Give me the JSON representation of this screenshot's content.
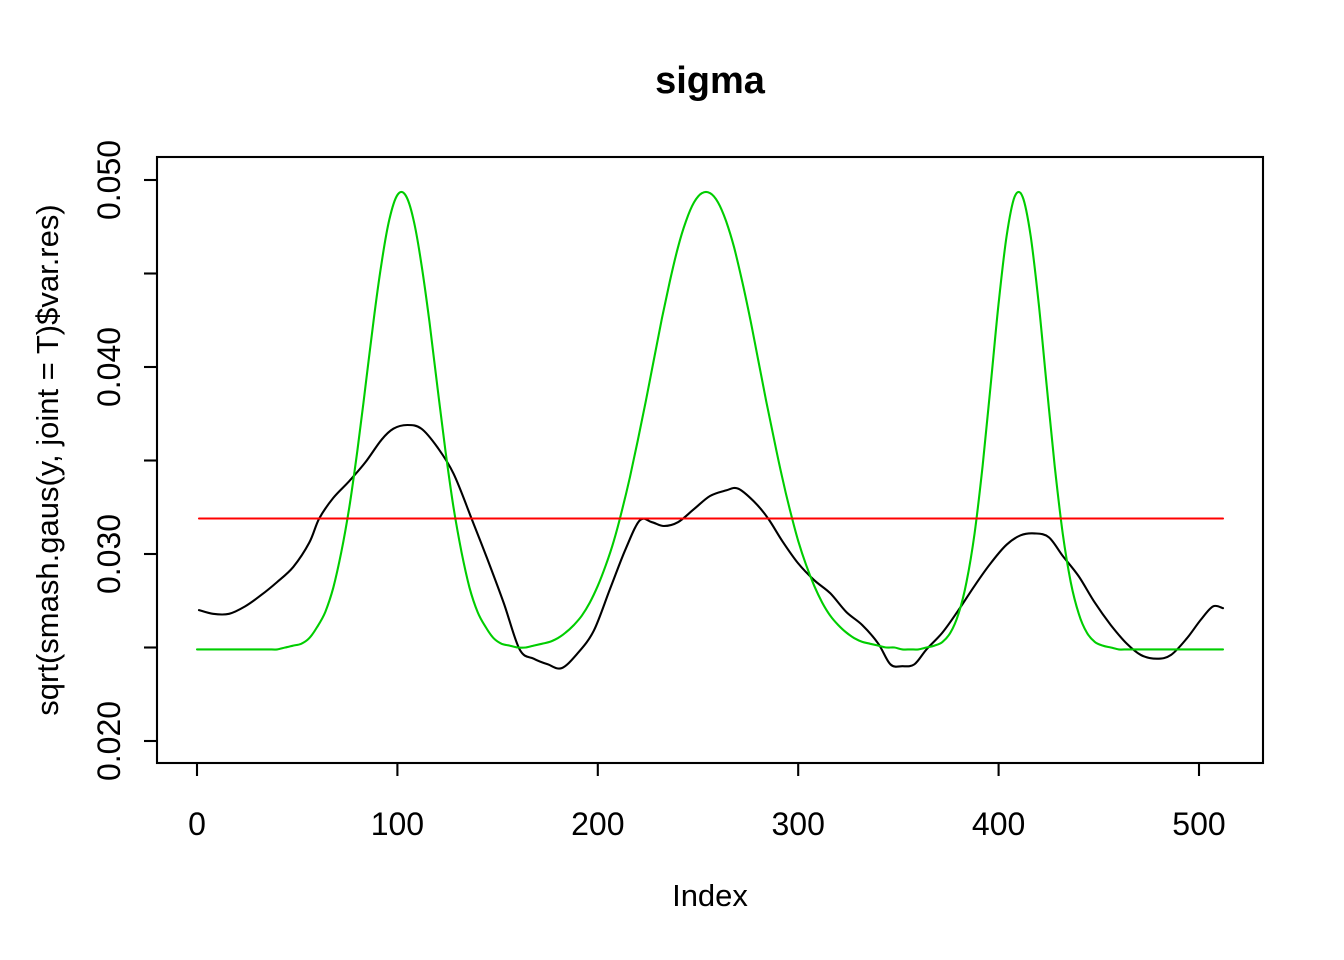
{
  "figure": {
    "background": "#ffffff",
    "title": "sigma"
  },
  "chart_data": {
    "type": "line",
    "title": "sigma",
    "xlabel": "Index",
    "ylabel": "sqrt(smash.gaus(y, joint = T)$var.res)",
    "xlim": [
      1,
      512
    ],
    "ylim": [
      0.02,
      0.05
    ],
    "grid": false,
    "legend": "none",
    "x_ticks": [
      {
        "value": 0,
        "label": "0"
      },
      {
        "value": 100,
        "label": "100"
      },
      {
        "value": 200,
        "label": "200"
      },
      {
        "value": 300,
        "label": "300"
      },
      {
        "value": 400,
        "label": "400"
      },
      {
        "value": 500,
        "label": "500"
      }
    ],
    "y_ticks": [
      {
        "value": 0.02,
        "label": "0.020"
      },
      {
        "value": 0.03,
        "label": "0.030"
      },
      {
        "value": 0.04,
        "label": "0.040"
      },
      {
        "value": 0.05,
        "label": "0.050"
      }
    ],
    "y_minor_ticks": [
      0.025,
      0.035,
      0.045
    ],
    "colors": {
      "black_series": "#000000",
      "green_series": "#00CD00",
      "red_series": "#FF0000",
      "axis": "#000000"
    },
    "series": [
      {
        "id": "black",
        "color": "#000000",
        "style": "smooth",
        "points": [
          [
            1,
            0.027
          ],
          [
            8,
            0.0268
          ],
          [
            16,
            0.0268
          ],
          [
            24,
            0.0272
          ],
          [
            32,
            0.0278
          ],
          [
            40,
            0.0285
          ],
          [
            48,
            0.0293
          ],
          [
            56,
            0.0306
          ],
          [
            61,
            0.0319
          ],
          [
            68,
            0.033
          ],
          [
            76,
            0.0339
          ],
          [
            84,
            0.0349
          ],
          [
            92,
            0.0361
          ],
          [
            98,
            0.0367
          ],
          [
            105,
            0.0369
          ],
          [
            112,
            0.0367
          ],
          [
            120,
            0.0357
          ],
          [
            128,
            0.0343
          ],
          [
            137,
            0.0319
          ],
          [
            145,
            0.0297
          ],
          [
            153,
            0.0274
          ],
          [
            161,
            0.0249
          ],
          [
            168,
            0.0244
          ],
          [
            175,
            0.0241
          ],
          [
            182,
            0.0239
          ],
          [
            190,
            0.0247
          ],
          [
            198,
            0.0259
          ],
          [
            206,
            0.0281
          ],
          [
            214,
            0.0303
          ],
          [
            221,
            0.0318
          ],
          [
            227,
            0.0317
          ],
          [
            233,
            0.0315
          ],
          [
            240,
            0.0317
          ],
          [
            248,
            0.0324
          ],
          [
            256,
            0.0331
          ],
          [
            264,
            0.0334
          ],
          [
            270,
            0.0335
          ],
          [
            278,
            0.0328
          ],
          [
            285,
            0.0319
          ],
          [
            292,
            0.0307
          ],
          [
            300,
            0.0295
          ],
          [
            308,
            0.0286
          ],
          [
            316,
            0.0279
          ],
          [
            324,
            0.0269
          ],
          [
            332,
            0.0262
          ],
          [
            340,
            0.0252
          ],
          [
            346,
            0.0241
          ],
          [
            352,
            0.024
          ],
          [
            358,
            0.0241
          ],
          [
            364,
            0.0249
          ],
          [
            372,
            0.0258
          ],
          [
            380,
            0.027
          ],
          [
            388,
            0.0283
          ],
          [
            396,
            0.0295
          ],
          [
            404,
            0.0305
          ],
          [
            411,
            0.031
          ],
          [
            418,
            0.0311
          ],
          [
            425,
            0.0309
          ],
          [
            432,
            0.0299
          ],
          [
            440,
            0.0288
          ],
          [
            448,
            0.0274
          ],
          [
            456,
            0.0262
          ],
          [
            464,
            0.0252
          ],
          [
            471,
            0.0246
          ],
          [
            479,
            0.0244
          ],
          [
            486,
            0.0246
          ],
          [
            494,
            0.0255
          ],
          [
            501,
            0.0265
          ],
          [
            507,
            0.0272
          ],
          [
            512,
            0.0271
          ]
        ]
      },
      {
        "id": "green",
        "color": "#00CD00",
        "style": "smooth",
        "x_start": 0,
        "x_step": 4,
        "values": [
          0.0249,
          0.0249,
          0.0249,
          0.0249,
          0.0249,
          0.0249,
          0.0249,
          0.0249,
          0.0249,
          0.0249,
          0.0249,
          0.025,
          0.0251,
          0.0252,
          0.0255,
          0.0261,
          0.0269,
          0.0282,
          0.0301,
          0.0325,
          0.0355,
          0.0389,
          0.0424,
          0.0455,
          0.0479,
          0.0492,
          0.0492,
          0.0479,
          0.0455,
          0.0424,
          0.0389,
          0.0355,
          0.0325,
          0.0301,
          0.0282,
          0.0269,
          0.0261,
          0.0255,
          0.0252,
          0.0251,
          0.025,
          0.025,
          0.0251,
          0.0252,
          0.0253,
          0.0255,
          0.0258,
          0.0262,
          0.0267,
          0.0274,
          0.0283,
          0.0294,
          0.0307,
          0.0323,
          0.0341,
          0.0361,
          0.0382,
          0.0404,
          0.0426,
          0.0446,
          0.0464,
          0.0478,
          0.0488,
          0.0493,
          0.0493,
          0.0488,
          0.0478,
          0.0464,
          0.0446,
          0.0426,
          0.0404,
          0.0382,
          0.0361,
          0.0341,
          0.0323,
          0.0307,
          0.0294,
          0.0283,
          0.0274,
          0.0267,
          0.0262,
          0.0258,
          0.0255,
          0.0253,
          0.0252,
          0.0251,
          0.025,
          0.025,
          0.0249,
          0.0249,
          0.0249,
          0.025,
          0.0251,
          0.0253,
          0.0258,
          0.0268,
          0.0285,
          0.0311,
          0.0347,
          0.039,
          0.0434,
          0.047,
          0.0491,
          0.0491,
          0.047,
          0.0434,
          0.039,
          0.0347,
          0.0311,
          0.0285,
          0.0268,
          0.0258,
          0.0253,
          0.0251,
          0.025,
          0.0249,
          0.0249,
          0.0249,
          0.0249,
          0.0249,
          0.0249,
          0.0249,
          0.0249,
          0.0249,
          0.0249,
          0.0249,
          0.0249,
          0.0249,
          0.0249
        ]
      },
      {
        "id": "red",
        "color": "#FF0000",
        "style": "constant",
        "constant_y": 0.0319,
        "x_from": 1,
        "x_to": 512
      }
    ]
  }
}
